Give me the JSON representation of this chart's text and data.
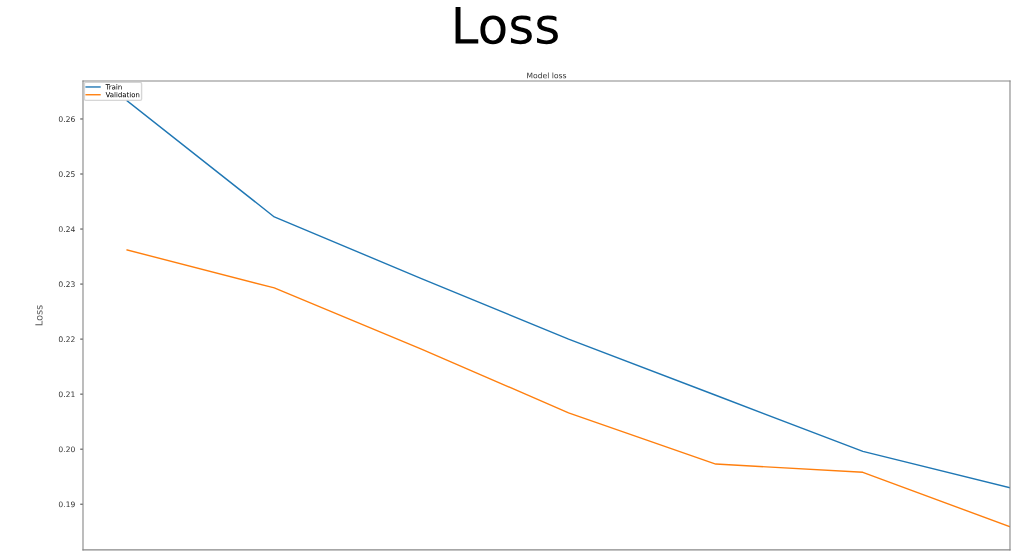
{
  "chart_data": {
    "type": "line",
    "title": "Loss",
    "subtitle": "Model loss",
    "ylabel": "Loss",
    "categories": [
      null,
      null,
      null,
      null,
      null,
      null,
      null
    ],
    "series": [
      {
        "name": "Train",
        "color": "#1f77b4",
        "values": [
          0.2633,
          0.2422,
          0.231,
          0.22,
          0.2098,
          0.1996,
          0.193
        ]
      },
      {
        "name": "Validation",
        "color": "#ff7f0e",
        "values": [
          0.2362,
          0.2293,
          0.2182,
          0.2066,
          0.1973,
          0.1958,
          0.1859
        ]
      }
    ],
    "ylim": [
      0.1817,
      0.2669
    ],
    "yticks": [
      0.19,
      {
        "value": 0.2,
        "label": "0.20"
      },
      0.21,
      0.22,
      0.23,
      0.24,
      0.25,
      0.26
    ],
    "grid": false,
    "legend": "top left",
    "marker": "none",
    "line_style": "solid",
    "tick_labels": "y"
  }
}
